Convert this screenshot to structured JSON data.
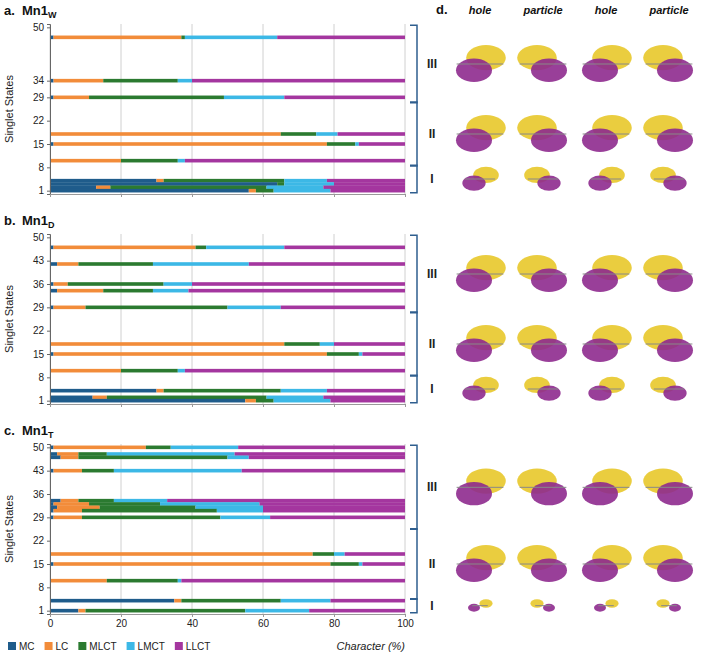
{
  "chart_data": [
    {
      "type": "bar",
      "orientation": "horizontal",
      "stacked": true,
      "grid": true,
      "tick_labels": "y",
      "panel": "a.",
      "title": "Mn1W",
      "ylabel": "Singlet States",
      "xlim": [
        0,
        100
      ],
      "xticks": [
        0,
        20,
        40,
        60,
        80,
        100
      ],
      "ylim": [
        0,
        51
      ],
      "yticks": [
        1,
        8,
        15,
        22,
        29,
        34,
        50
      ],
      "y": [
        47,
        34,
        29,
        18,
        15,
        10,
        4,
        3,
        2,
        1
      ],
      "series": [
        {
          "name": "MC",
          "color": "#1f5c8b",
          "values": [
            1,
            1,
            1,
            0,
            1,
            0,
            30,
            64,
            13,
            56
          ]
        },
        {
          "name": "LC",
          "color": "#f28c3a",
          "values": [
            36,
            14,
            10,
            65,
            77,
            20,
            2,
            0,
            4,
            2
          ]
        },
        {
          "name": "MLCT",
          "color": "#2b7a30",
          "values": [
            1,
            21,
            38,
            10,
            8,
            16,
            34,
            2,
            44,
            5
          ]
        },
        {
          "name": "LMCT",
          "color": "#3cb8e6",
          "values": [
            26,
            4,
            17,
            6,
            1,
            2,
            12,
            14,
            16,
            16
          ]
        },
        {
          "name": "LLCT",
          "color": "#a4369f",
          "values": [
            36,
            60,
            34,
            19,
            13,
            62,
            22,
            20,
            23,
            21
          ]
        }
      ],
      "groups": [
        {
          "label": "III",
          "from": 28,
          "to": 50
        },
        {
          "label": "II",
          "from": 9,
          "to": 27
        },
        {
          "label": "I",
          "from": 1,
          "to": 8
        }
      ]
    },
    {
      "type": "bar",
      "orientation": "horizontal",
      "stacked": true,
      "grid": true,
      "tick_labels": "y",
      "panel": "b.",
      "title": "Mn1D",
      "ylabel": "Singlet States",
      "xlim": [
        0,
        100
      ],
      "xticks": [
        0,
        20,
        40,
        60,
        80,
        100
      ],
      "ylim": [
        0,
        51
      ],
      "yticks": [
        1,
        8,
        15,
        22,
        29,
        36,
        43,
        50
      ],
      "y": [
        47,
        42,
        36,
        34,
        29,
        18,
        15,
        10,
        4,
        2,
        1
      ],
      "series": [
        {
          "name": "MC",
          "color": "#1f5c8b",
          "values": [
            1,
            2,
            1,
            2,
            1,
            0,
            1,
            0,
            30,
            12,
            55
          ]
        },
        {
          "name": "LC",
          "color": "#f28c3a",
          "values": [
            40,
            6,
            4,
            13,
            9,
            66,
            77,
            20,
            2,
            4,
            3
          ]
        },
        {
          "name": "MLCT",
          "color": "#2b7a30",
          "values": [
            3,
            21,
            27,
            14,
            40,
            10,
            9,
            16,
            33,
            45,
            5
          ]
        },
        {
          "name": "LMCT",
          "color": "#3cb8e6",
          "values": [
            22,
            27,
            8,
            10,
            15,
            4,
            1,
            2,
            13,
            16,
            16
          ]
        },
        {
          "name": "LLCT",
          "color": "#a4369f",
          "values": [
            34,
            44,
            60,
            61,
            35,
            20,
            12,
            62,
            22,
            23,
            21
          ]
        }
      ],
      "groups": [
        {
          "label": "III",
          "from": 28,
          "to": 50
        },
        {
          "label": "II",
          "from": 9,
          "to": 27
        },
        {
          "label": "I",
          "from": 1,
          "to": 8
        }
      ]
    },
    {
      "type": "bar",
      "orientation": "horizontal",
      "stacked": true,
      "grid": true,
      "legend": "bottom",
      "panel": "c.",
      "title": "Mn1T",
      "ylabel": "Singlet States",
      "xlabel": "Character (%)",
      "xlim": [
        0,
        100
      ],
      "xticks": [
        0,
        20,
        40,
        60,
        80,
        100
      ],
      "ylim": [
        0,
        51
      ],
      "yticks": [
        1,
        8,
        15,
        22,
        29,
        36,
        43,
        50
      ],
      "y": [
        50,
        48,
        47,
        43,
        34,
        33,
        32,
        31,
        29,
        18,
        15,
        10,
        4,
        1
      ],
      "series": [
        {
          "name": "MC",
          "color": "#1f5c8b",
          "values": [
            1,
            2,
            3,
            1,
            3,
            1,
            2,
            1,
            1,
            0,
            1,
            0,
            35,
            8
          ]
        },
        {
          "name": "LC",
          "color": "#f28c3a",
          "values": [
            26,
            6,
            5,
            8,
            5,
            10,
            12,
            8,
            8,
            74,
            78,
            16,
            2,
            2
          ]
        },
        {
          "name": "MLCT",
          "color": "#2b7a30",
          "values": [
            7,
            8,
            42,
            9,
            10,
            20,
            27,
            38,
            39,
            6,
            8,
            20,
            28,
            45
          ]
        },
        {
          "name": "LMCT",
          "color": "#3cb8e6",
          "values": [
            19,
            36,
            6,
            36,
            15,
            28,
            19,
            13,
            14,
            3,
            1,
            1,
            14,
            18
          ]
        },
        {
          "name": "LLCT",
          "color": "#a4369f",
          "values": [
            47,
            48,
            44,
            46,
            67,
            41,
            40,
            40,
            38,
            17,
            12,
            63,
            21,
            27
          ]
        }
      ],
      "groups": [
        {
          "label": "III",
          "from": 26,
          "to": 50
        },
        {
          "label": "II",
          "from": 5,
          "to": 25
        },
        {
          "label": "I",
          "from": 1,
          "to": 4
        }
      ]
    }
  ],
  "panel_d": {
    "label": "d.",
    "columns": [
      "hole",
      "particle",
      "hole",
      "particle"
    ]
  }
}
